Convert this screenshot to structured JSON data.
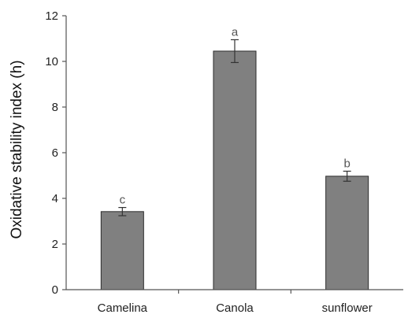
{
  "chart_data": {
    "type": "bar",
    "categories": [
      "Camelina",
      "Canola",
      "sunflower"
    ],
    "values": [
      3.42,
      10.45,
      4.97
    ],
    "errors": [
      0.18,
      0.5,
      0.22
    ],
    "significance_labels": [
      "c",
      "a",
      "b"
    ],
    "title": "",
    "xlabel": "",
    "ylabel": "Oxidative stability index (h)",
    "ylim": [
      0,
      12
    ],
    "yticks": [
      0,
      2,
      4,
      6,
      8,
      10,
      12
    ],
    "grid": false,
    "bar_color": "#808080",
    "bar_edge_color": "#2b2b2b"
  }
}
